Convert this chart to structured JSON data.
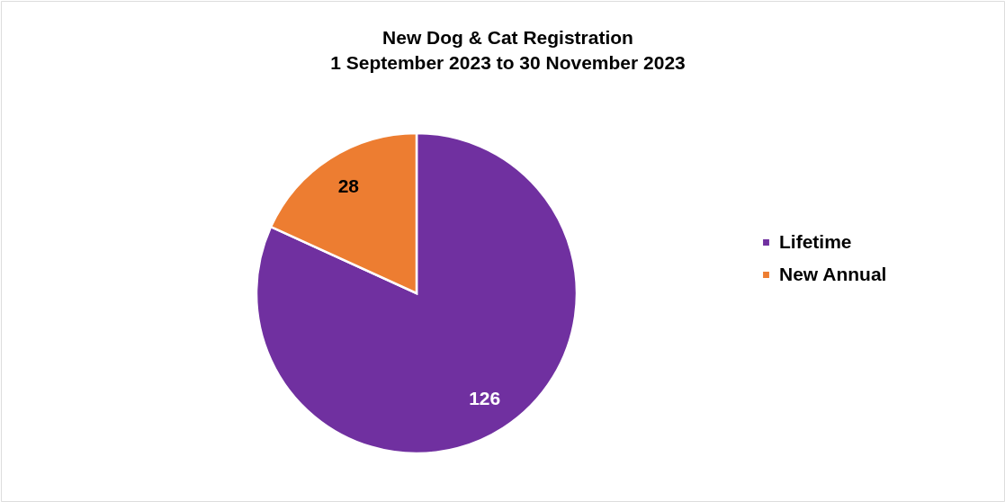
{
  "chart_data": {
    "type": "pie",
    "title": "New Dog & Cat Registration\n1 September 2023 to 30 November 2023",
    "categories": [
      "Lifetime",
      "New Annual"
    ],
    "values": [
      126,
      28
    ],
    "colors": [
      "#7030a0",
      "#ed7d31"
    ],
    "data_labels": true,
    "legend": "right"
  }
}
